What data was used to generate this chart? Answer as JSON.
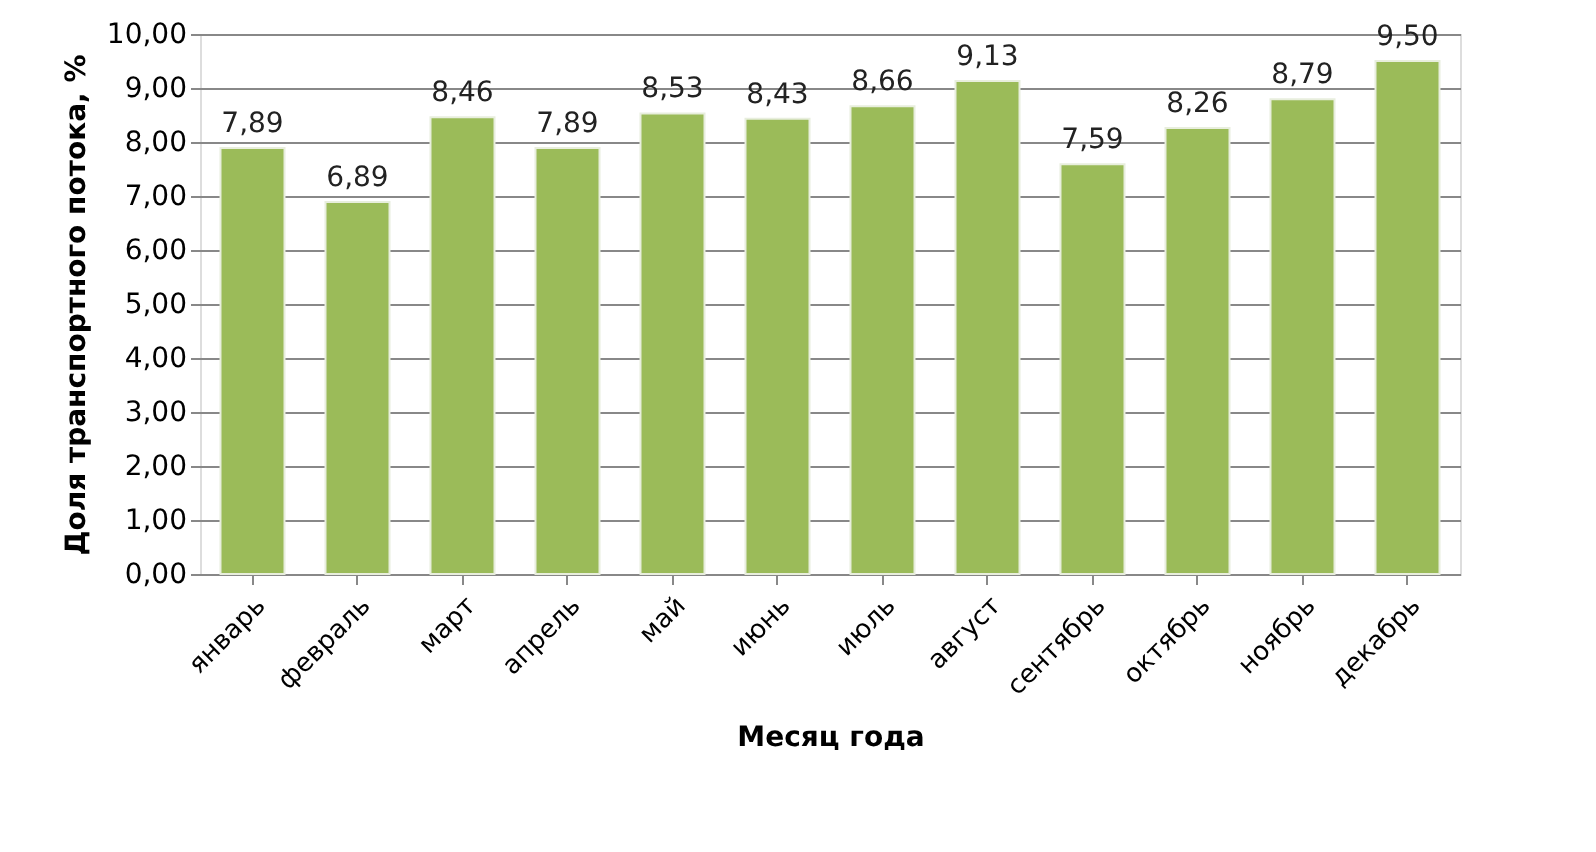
{
  "chart_data": {
    "type": "bar",
    "xlabel": "Месяц года",
    "ylabel": "Доля транспортного  потока, %",
    "categories": [
      "январь",
      "февраль",
      "март",
      "апрель",
      "май",
      "июнь",
      "июль",
      "август",
      "сентябрь",
      "октябрь",
      "ноябрь",
      "декабрь"
    ],
    "values": [
      7.89,
      6.89,
      8.46,
      7.89,
      8.53,
      8.43,
      8.66,
      9.13,
      7.59,
      8.26,
      8.79,
      9.5
    ],
    "value_labels": [
      "7,89",
      "6,89",
      "8,46",
      "7,89",
      "8,53",
      "8,43",
      "8,66",
      "9,13",
      "7,59",
      "8,26",
      "8,79",
      "9,50"
    ],
    "color": "#9bbb59",
    "ylim": [
      0,
      10
    ],
    "yticks": [
      {
        "value": 0,
        "label": "0,00"
      },
      {
        "value": 1,
        "label": "1,00"
      },
      {
        "value": 2,
        "label": "2,00"
      },
      {
        "value": 3,
        "label": "3,00"
      },
      {
        "value": 4,
        "label": "4,00"
      },
      {
        "value": 5,
        "label": "5,00"
      },
      {
        "value": 6,
        "label": "6,00"
      },
      {
        "value": 7,
        "label": "7,00"
      },
      {
        "value": 8,
        "label": "8,00"
      },
      {
        "value": 9,
        "label": "9,00"
      },
      {
        "value": 10,
        "label": "10,00"
      }
    ],
    "grid": "y"
  }
}
